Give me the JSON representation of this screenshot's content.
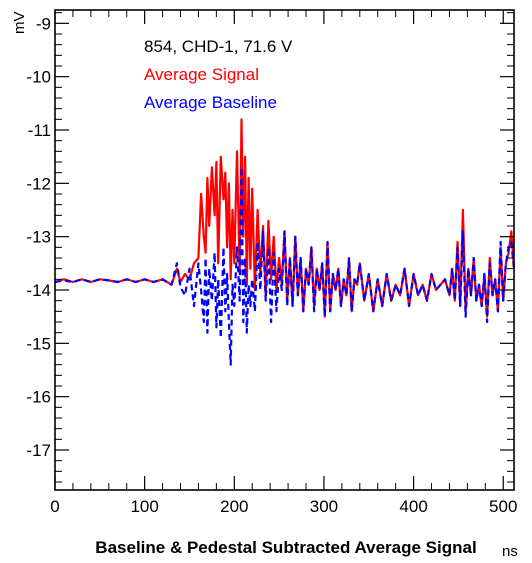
{
  "chart_data": {
    "type": "line",
    "title": "Baseline & Pedestal Subtracted Average Signal",
    "xlabel": "ns",
    "ylabel": "mV",
    "xlim": [
      0,
      512
    ],
    "ylim": [
      -17.75,
      -8.75
    ],
    "x_ticks": [
      0,
      100,
      200,
      300,
      400,
      500
    ],
    "x_tick_labels": [
      "0",
      "100",
      "200",
      "300",
      "400",
      "500"
    ],
    "y_ticks": [
      -17,
      -16,
      -15,
      -14,
      -13,
      -12,
      -11,
      -10,
      -9
    ],
    "y_tick_labels": [
      "-17",
      "-16",
      "-15",
      "-14",
      "-13",
      "-12",
      "-11",
      "-10",
      "-9"
    ],
    "legend": {
      "header": "854, CHD-1, 71.6 V",
      "placement": "top-left",
      "entries": [
        "Average Signal",
        "Average Baseline"
      ]
    },
    "series": [
      {
        "name": "Average Signal",
        "color": "#ff0000",
        "style": "solid",
        "x": [
          0,
          10,
          20,
          30,
          40,
          50,
          60,
          70,
          80,
          90,
          100,
          110,
          120,
          130,
          136,
          140,
          145,
          150,
          155,
          160,
          163,
          166,
          168,
          170,
          172,
          175,
          178,
          180,
          182,
          185,
          188,
          190,
          192,
          194,
          196,
          198,
          200,
          203,
          206,
          208,
          210,
          212,
          214,
          216,
          218,
          220,
          223,
          226,
          229,
          232,
          235,
          238,
          241,
          244,
          247,
          250,
          253,
          256,
          259,
          262,
          265,
          268,
          271,
          274,
          277,
          280,
          283,
          286,
          289,
          292,
          295,
          298,
          301,
          304,
          307,
          310,
          313,
          316,
          319,
          322,
          325,
          328,
          331,
          334,
          337,
          340,
          345,
          350,
          355,
          360,
          365,
          370,
          375,
          380,
          385,
          390,
          395,
          400,
          405,
          410,
          415,
          420,
          425,
          430,
          435,
          440,
          443,
          446,
          449,
          452,
          455,
          458,
          461,
          464,
          467,
          470,
          473,
          476,
          479,
          482,
          485,
          488,
          491,
          494,
          497,
          500,
          503,
          506,
          509,
          512
        ],
        "y": [
          -13.85,
          -13.8,
          -13.85,
          -13.8,
          -13.85,
          -13.8,
          -13.82,
          -13.85,
          -13.8,
          -13.85,
          -13.8,
          -13.85,
          -13.8,
          -13.9,
          -13.6,
          -13.85,
          -13.7,
          -13.8,
          -13.5,
          -13.4,
          -12.2,
          -13.0,
          -13.3,
          -11.9,
          -12.8,
          -11.7,
          -12.6,
          -11.6,
          -13.5,
          -11.5,
          -12.3,
          -11.8,
          -13.2,
          -12.0,
          -13.8,
          -12.5,
          -13.5,
          -11.4,
          -13.7,
          -10.8,
          -13.0,
          -11.5,
          -13.9,
          -11.9,
          -13.6,
          -12.1,
          -14.0,
          -12.5,
          -13.7,
          -12.8,
          -14.1,
          -12.7,
          -13.8,
          -13.0,
          -14.0,
          -13.4,
          -13.9,
          -12.9,
          -14.2,
          -13.4,
          -14.3,
          -13.0,
          -14.1,
          -13.4,
          -14.4,
          -13.6,
          -13.9,
          -13.2,
          -14.3,
          -13.6,
          -14.0,
          -13.5,
          -14.5,
          -13.1,
          -14.4,
          -13.7,
          -14.0,
          -13.6,
          -14.3,
          -13.8,
          -14.1,
          -13.4,
          -14.4,
          -13.8,
          -13.9,
          -13.5,
          -14.2,
          -13.7,
          -14.4,
          -13.8,
          -14.3,
          -13.7,
          -14.2,
          -13.9,
          -14.1,
          -13.6,
          -14.3,
          -13.7,
          -14.1,
          -13.9,
          -14.2,
          -13.7,
          -14.0,
          -13.9,
          -13.8,
          -14.1,
          -13.6,
          -14.2,
          -13.1,
          -14.3,
          -12.5,
          -14.4,
          -13.6,
          -14.1,
          -13.4,
          -14.2,
          -13.9,
          -14.3,
          -13.7,
          -14.5,
          -13.4,
          -14.1,
          -13.8,
          -14.4,
          -13.2,
          -14.2,
          -13.5,
          -13.3,
          -12.9,
          -13.6
        ]
      },
      {
        "name": "Average Baseline",
        "color": "#0000ff",
        "style": "dashed",
        "x": [
          0,
          10,
          20,
          30,
          40,
          50,
          60,
          70,
          80,
          90,
          100,
          110,
          120,
          130,
          136,
          140,
          145,
          150,
          155,
          160,
          163,
          166,
          168,
          170,
          172,
          175,
          178,
          180,
          182,
          185,
          188,
          190,
          192,
          194,
          196,
          198,
          200,
          203,
          206,
          208,
          210,
          212,
          214,
          216,
          218,
          220,
          223,
          226,
          229,
          232,
          235,
          238,
          241,
          244,
          247,
          250,
          253,
          256,
          259,
          262,
          265,
          268,
          271,
          274,
          277,
          280,
          283,
          286,
          289,
          292,
          295,
          298,
          301,
          304,
          307,
          310,
          313,
          316,
          319,
          322,
          325,
          328,
          331,
          334,
          337,
          340,
          345,
          350,
          355,
          360,
          365,
          370,
          375,
          380,
          385,
          390,
          395,
          400,
          405,
          410,
          415,
          420,
          425,
          430,
          435,
          440,
          443,
          446,
          449,
          452,
          455,
          458,
          461,
          464,
          467,
          470,
          473,
          476,
          479,
          482,
          485,
          488,
          491,
          494,
          497,
          500,
          503,
          506,
          509,
          512
        ],
        "y": [
          -13.85,
          -13.82,
          -13.85,
          -13.8,
          -13.85,
          -13.8,
          -13.82,
          -13.85,
          -13.8,
          -13.85,
          -13.8,
          -13.85,
          -13.8,
          -13.9,
          -13.5,
          -13.95,
          -14.1,
          -13.6,
          -14.3,
          -13.5,
          -14.0,
          -14.6,
          -13.4,
          -14.8,
          -13.6,
          -14.2,
          -13.3,
          -14.7,
          -13.8,
          -14.9,
          -13.2,
          -14.4,
          -13.7,
          -14.6,
          -15.4,
          -13.9,
          -14.3,
          -13.2,
          -14.2,
          -11.7,
          -14.6,
          -13.4,
          -14.8,
          -13.9,
          -14.3,
          -13.8,
          -14.4,
          -13.1,
          -14.0,
          -12.9,
          -14.2,
          -13.2,
          -14.6,
          -13.3,
          -14.4,
          -13.6,
          -14.0,
          -12.9,
          -14.3,
          -13.4,
          -14.3,
          -13.0,
          -14.1,
          -13.4,
          -14.4,
          -13.6,
          -13.9,
          -13.2,
          -14.4,
          -13.6,
          -14.0,
          -13.5,
          -14.5,
          -13.1,
          -14.4,
          -13.7,
          -14.0,
          -13.6,
          -14.3,
          -13.8,
          -14.1,
          -13.4,
          -14.4,
          -13.8,
          -13.9,
          -13.5,
          -14.2,
          -13.7,
          -14.4,
          -13.8,
          -14.3,
          -13.7,
          -14.2,
          -13.9,
          -14.1,
          -13.6,
          -14.3,
          -13.7,
          -14.1,
          -13.9,
          -14.2,
          -13.7,
          -14.0,
          -13.9,
          -13.8,
          -14.1,
          -13.6,
          -14.2,
          -13.2,
          -14.3,
          -12.9,
          -14.5,
          -13.6,
          -14.1,
          -13.4,
          -14.2,
          -13.9,
          -14.3,
          -13.7,
          -14.6,
          -13.5,
          -14.1,
          -13.8,
          -14.4,
          -13.1,
          -14.2,
          -13.5,
          -13.2,
          -13.1,
          -13.6
        ]
      }
    ],
    "grid": false
  }
}
